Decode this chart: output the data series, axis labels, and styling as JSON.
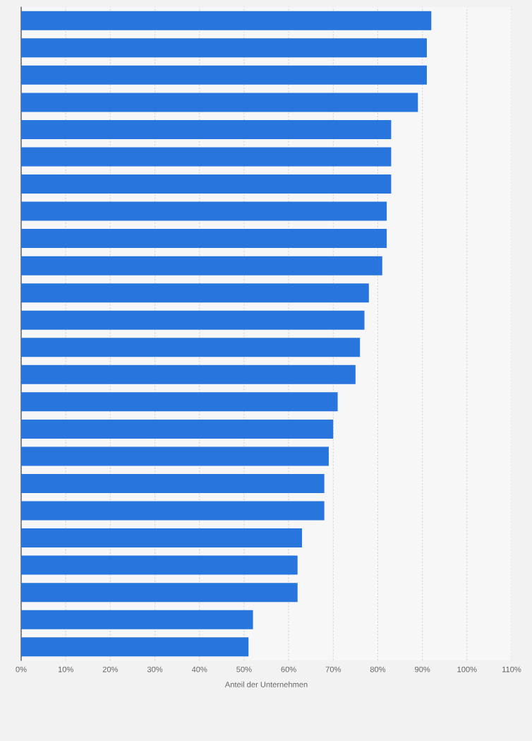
{
  "chart_data": {
    "type": "bar",
    "orientation": "horizontal",
    "xlabel": "Anteil der Unternehmen",
    "categories": [
      null,
      null,
      null,
      null,
      null,
      null,
      null,
      null,
      null,
      null,
      null,
      null,
      null,
      null,
      null,
      null,
      null,
      null,
      null,
      null,
      null,
      null,
      null,
      null
    ],
    "values": [
      92,
      91,
      91,
      89,
      83,
      83,
      83,
      82,
      82,
      81,
      78,
      77,
      76,
      75,
      71,
      70,
      69,
      68,
      68,
      63,
      62,
      62,
      52,
      51
    ],
    "color": "#2876dd",
    "xlim": [
      0,
      110
    ],
    "xticks": [
      {
        "value": 0,
        "label": "0%"
      },
      {
        "value": 10,
        "label": "10%"
      },
      {
        "value": 20,
        "label": "20%"
      },
      {
        "value": 30,
        "label": "30%"
      },
      {
        "value": 40,
        "label": "40%"
      },
      {
        "value": 50,
        "label": "50%"
      },
      {
        "value": 60,
        "label": "60%"
      },
      {
        "value": 70,
        "label": "70%"
      },
      {
        "value": 80,
        "label": "80%"
      },
      {
        "value": 90,
        "label": "90%"
      },
      {
        "value": 100,
        "label": "100%"
      },
      {
        "value": 110,
        "label": "110%"
      }
    ],
    "grid": "x"
  }
}
